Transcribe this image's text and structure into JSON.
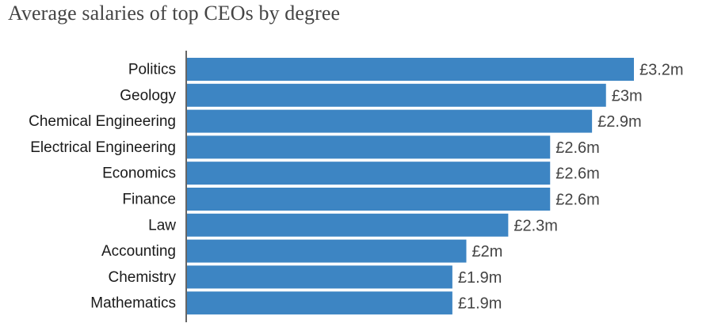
{
  "title": "Average salaries of top CEOs by degree",
  "colors": {
    "bar": "#3d85c3",
    "axis": "#333333"
  },
  "chart_data": {
    "type": "bar",
    "orientation": "horizontal",
    "title": "Average salaries of top CEOs by degree",
    "categories": [
      "Politics",
      "Geology",
      "Chemical Engineering",
      "Electrical Engineering",
      "Economics",
      "Finance",
      "Law",
      "Accounting",
      "Chemistry",
      "Mathematics"
    ],
    "values": [
      3.2,
      3.0,
      2.9,
      2.6,
      2.6,
      2.6,
      2.3,
      2.0,
      1.9,
      1.9
    ],
    "value_labels": [
      "£3.2m",
      "£3m",
      "£2.9m",
      "£2.6m",
      "£2.6m",
      "£2.6m",
      "£2.3m",
      "£2m",
      "£1.9m",
      "£1.9m"
    ],
    "unit": "£m",
    "xlim": [
      0,
      3.2
    ],
    "xlabel": "",
    "ylabel": "",
    "grid": false,
    "legend": "none"
  }
}
